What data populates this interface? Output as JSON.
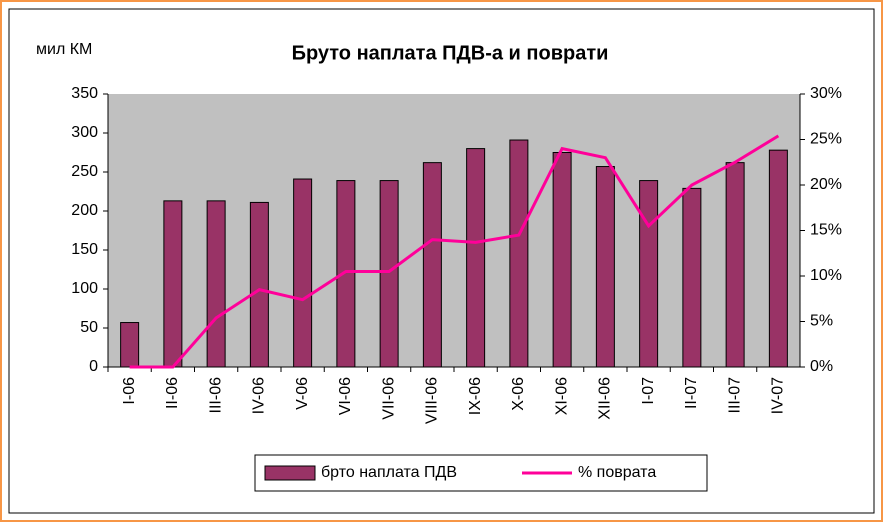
{
  "chart_data": {
    "type": "bar",
    "title": "Бруто наплата ПДВ-а и поврати",
    "y_label": "мил КМ",
    "categories": [
      "I-06",
      "II-06",
      "III-06",
      "IV-06",
      "V-06",
      "VI-06",
      "VII-06",
      "VIII-06",
      "IX-06",
      "X-06",
      "XI-06",
      "XII-06",
      "I-07",
      "II-07",
      "III-07",
      "IV-07"
    ],
    "series": [
      {
        "name": "брто наплата ПДВ",
        "type": "bar",
        "color": "#993366",
        "values": [
          57,
          213,
          213,
          211,
          241,
          239,
          239,
          262,
          280,
          291,
          275,
          257,
          239,
          229,
          262,
          278
        ]
      },
      {
        "name": "% поврата",
        "type": "line",
        "axis": "y2",
        "color": "#ff0099",
        "values": [
          0,
          0,
          5.4,
          8.5,
          7.4,
          10.5,
          10.5,
          14,
          13.7,
          14.5,
          24,
          23,
          15.5,
          20,
          22.5,
          25.4
        ]
      }
    ],
    "ylim": [
      0,
      350
    ],
    "yticks": [
      0,
      50,
      100,
      150,
      200,
      250,
      300,
      350
    ],
    "y2lim": [
      0,
      30
    ],
    "y2ticks": [
      {
        "value": 0,
        "label": "0%"
      },
      {
        "value": 5,
        "label": "5%"
      },
      {
        "value": 10,
        "label": "10%"
      },
      {
        "value": 15,
        "label": "15%"
      },
      {
        "value": 20,
        "label": "20%"
      },
      {
        "value": 25,
        "label": "25%"
      },
      {
        "value": 30,
        "label": "30%"
      }
    ],
    "legend": "bottom"
  }
}
